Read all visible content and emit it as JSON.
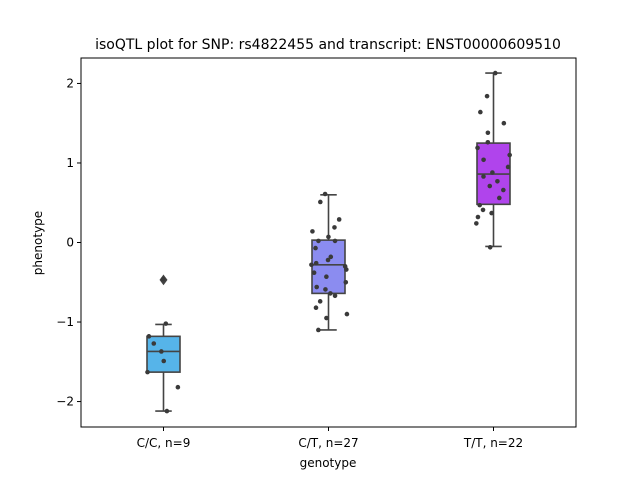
{
  "chart_data": {
    "type": "box",
    "title": "isoQTL plot for SNP: rs4822455 and transcript: ENST00000609510",
    "xlabel": "genotype",
    "ylabel": "phenotype",
    "ylim": [
      -2.32,
      2.32
    ],
    "yticks": [
      -2,
      -1,
      0,
      1,
      2
    ],
    "ytick_labels": [
      "−2",
      "−1",
      "0",
      "1",
      "2"
    ],
    "grid": false,
    "legend": "none",
    "categories": [
      "C/C, n=9",
      "C/T, n=27",
      "T/T, n=22"
    ],
    "boxes": [
      {
        "label": "C/C, n=9",
        "color": "#56b4e9",
        "q1": -1.63,
        "median": -1.37,
        "q3": -1.18,
        "whisker_low": -2.12,
        "whisker_high": -1.03,
        "outliers": [
          -0.47
        ],
        "points": [
          -0.46,
          -1.02,
          -1.18,
          -1.27,
          -1.37,
          -1.49,
          -1.63,
          -1.82,
          -2.12
        ]
      },
      {
        "label": "C/T, n=27",
        "color": "#8b8cf0",
        "q1": -0.64,
        "median": -0.28,
        "q3": 0.03,
        "whisker_low": -1.1,
        "whisker_high": 0.6,
        "outliers": [],
        "points": [
          0.61,
          0.51,
          0.29,
          0.19,
          0.14,
          0.07,
          0.02,
          0.02,
          -0.07,
          -0.18,
          -0.22,
          -0.26,
          -0.28,
          -0.3,
          -0.34,
          -0.38,
          -0.43,
          -0.5,
          -0.56,
          -0.59,
          -0.64,
          -0.67,
          -0.74,
          -0.82,
          -0.9,
          -0.95,
          -1.1
        ]
      },
      {
        "label": "T/T, n=22",
        "color": "#b044ec",
        "q1": 0.48,
        "median": 0.86,
        "q3": 1.25,
        "whisker_low": -0.05,
        "whisker_high": 2.13,
        "outliers": [],
        "points": [
          2.13,
          1.84,
          1.64,
          1.5,
          1.38,
          1.26,
          1.19,
          1.1,
          1.04,
          0.95,
          0.88,
          0.83,
          0.77,
          0.71,
          0.66,
          0.56,
          0.47,
          0.41,
          0.37,
          0.32,
          0.24,
          -0.06
        ]
      }
    ]
  }
}
